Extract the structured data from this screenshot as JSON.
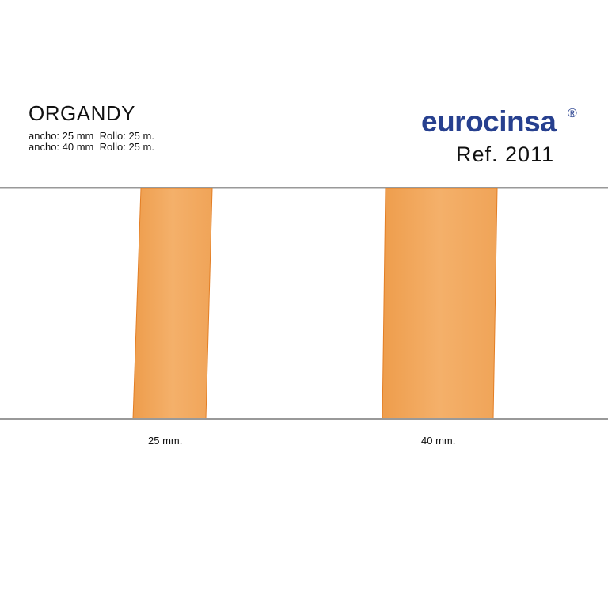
{
  "product": {
    "title": "ORGANDY",
    "specs": [
      "ancho: 25 mm  Rollo: 25 m.",
      "ancho: 40 mm  Rollo: 25 m."
    ]
  },
  "brand": {
    "logo": "eurocinsa",
    "registered": "®",
    "reference": "Ref. 2011",
    "color": "#27408f"
  },
  "samples": [
    {
      "label": "25 mm."
    },
    {
      "label": "40 mm."
    }
  ],
  "colors": {
    "ribbon": "#f2aa5e",
    "ribbon_edge": "#e37e24",
    "rule": "#999999"
  }
}
